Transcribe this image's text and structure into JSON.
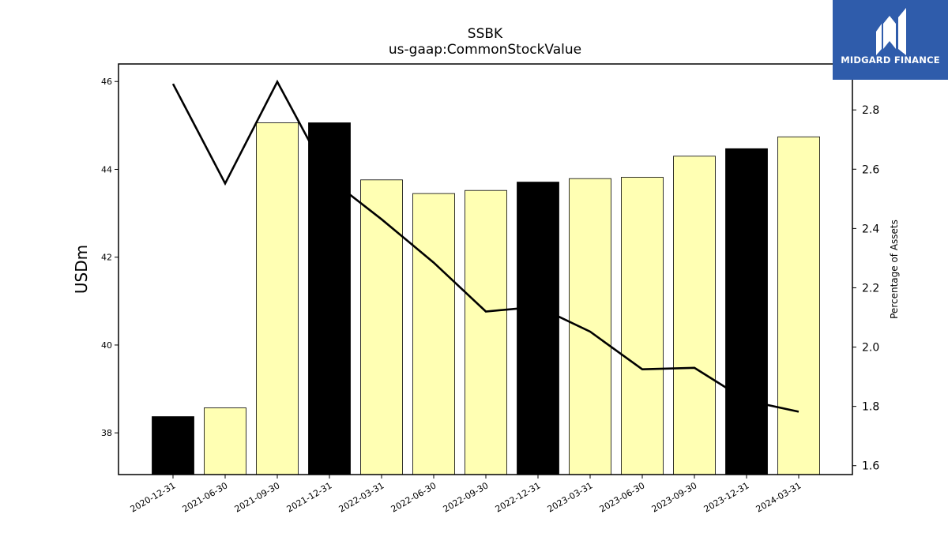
{
  "chart_data": {
    "type": "bar",
    "title": "SSBK",
    "subtitle": "us-gaap:CommonStockValue",
    "ylabel": "USDm",
    "y2label": "Percentage of Assets",
    "categories": [
      "2020-12-31",
      "2021-06-30",
      "2021-09-30",
      "2021-12-31",
      "2022-03-31",
      "2022-06-30",
      "2022-09-30",
      "2022-12-31",
      "2023-03-31",
      "2023-06-30",
      "2023-09-30",
      "2023-12-31",
      "2024-03-31"
    ],
    "values": [
      38.37,
      38.57,
      45.06,
      45.06,
      43.76,
      43.45,
      43.52,
      43.71,
      43.79,
      43.82,
      44.3,
      44.47,
      44.74
    ],
    "bar_fill": [
      "#000000",
      "#ffffb3",
      "#ffffb3",
      "#000000",
      "#ffffb3",
      "#ffffb3",
      "#ffffb3",
      "#000000",
      "#ffffb3",
      "#ffffb3",
      "#ffffb3",
      "#000000",
      "#ffffb3"
    ],
    "ylim": [
      37.05,
      46.4
    ],
    "yticks": [
      38,
      40,
      42,
      44,
      46
    ],
    "secondary_series": {
      "type": "line",
      "values": [
        2.888,
        2.552,
        2.895,
        2.568,
        2.431,
        2.285,
        2.12,
        2.136,
        2.052,
        1.925,
        1.93,
        1.82,
        1.782
      ],
      "color": "#000000"
    },
    "y2lim": [
      1.57,
      2.955
    ],
    "y2ticks": [
      "1.6",
      "1.8",
      "2.0",
      "2.2",
      "2.4",
      "2.6",
      "2.8"
    ],
    "grid": false,
    "legend": "none"
  },
  "logo": {
    "text": "MIDGARD FINANCE"
  }
}
